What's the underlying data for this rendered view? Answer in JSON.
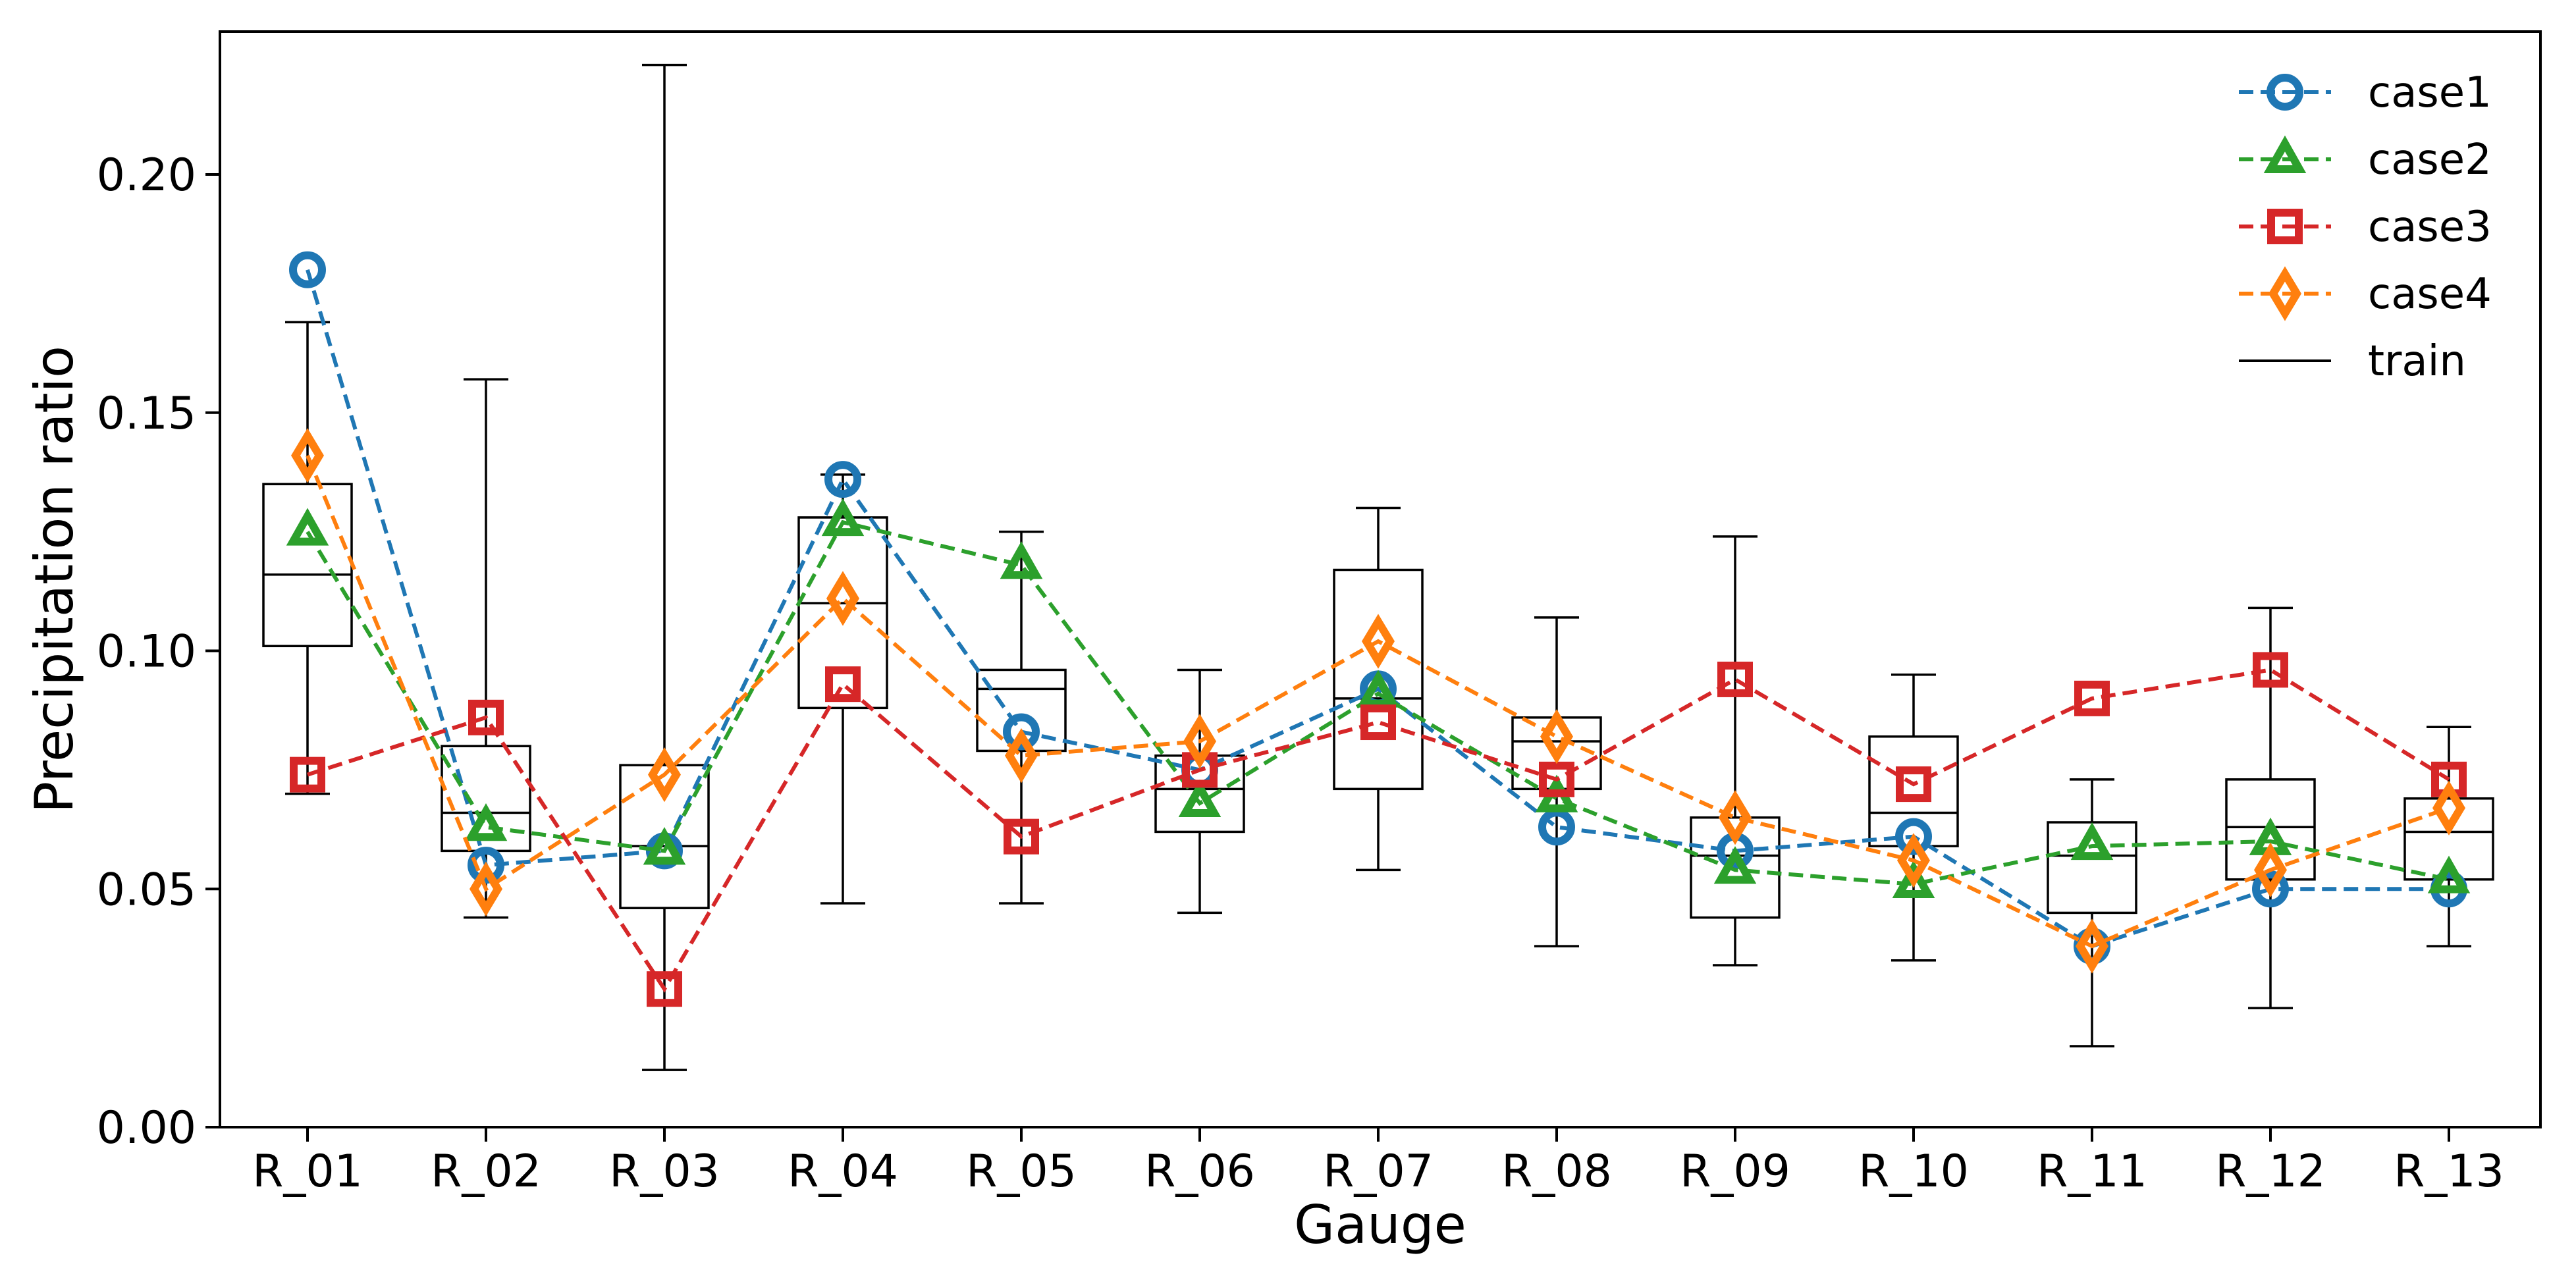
{
  "chart_data": {
    "type": "box+line",
    "title": "",
    "xlabel": "Gauge",
    "ylabel": "Precipitation ratio",
    "ylim": [
      0.0,
      0.23
    ],
    "yticks": [
      0.0,
      0.05,
      0.1,
      0.15,
      0.2
    ],
    "ytick_labels": [
      "0.00",
      "0.05",
      "0.10",
      "0.15",
      "0.20"
    ],
    "grid": false,
    "legend_position": "top-right",
    "categories": [
      "R_01",
      "R_02",
      "R_03",
      "R_04",
      "R_05",
      "R_06",
      "R_07",
      "R_08",
      "R_09",
      "R_10",
      "R_11",
      "R_12",
      "R_13"
    ],
    "series": [
      {
        "name": "case1",
        "color": "#1f77b4",
        "marker": "circle",
        "values": [
          0.18,
          0.055,
          0.058,
          0.136,
          0.083,
          0.075,
          0.092,
          0.063,
          0.058,
          0.061,
          0.038,
          0.05,
          0.05
        ]
      },
      {
        "name": "case2",
        "color": "#2ca02c",
        "marker": "triangle",
        "values": [
          0.125,
          0.063,
          0.058,
          0.127,
          0.118,
          0.068,
          0.091,
          0.069,
          0.054,
          0.051,
          0.059,
          0.06,
          0.052
        ]
      },
      {
        "name": "case3",
        "color": "#d62728",
        "marker": "square",
        "values": [
          0.074,
          0.086,
          0.029,
          0.093,
          0.061,
          0.075,
          0.085,
          0.073,
          0.094,
          0.072,
          0.09,
          0.096,
          0.073
        ]
      },
      {
        "name": "case4",
        "color": "#ff7f0e",
        "marker": "diamond",
        "values": [
          0.141,
          0.05,
          0.074,
          0.111,
          0.078,
          0.081,
          0.102,
          0.082,
          0.065,
          0.056,
          0.038,
          0.054,
          0.067
        ]
      }
    ],
    "train": {
      "name": "train",
      "color": "#000000",
      "boxes": [
        {
          "whisker_low": 0.07,
          "q1": 0.101,
          "median": 0.116,
          "q3": 0.135,
          "whisker_high": 0.169
        },
        {
          "whisker_low": 0.044,
          "q1": 0.058,
          "median": 0.066,
          "q3": 0.08,
          "whisker_high": 0.157
        },
        {
          "whisker_low": 0.012,
          "q1": 0.046,
          "median": 0.059,
          "q3": 0.076,
          "whisker_high": 0.223
        },
        {
          "whisker_low": 0.047,
          "q1": 0.088,
          "median": 0.11,
          "q3": 0.128,
          "whisker_high": 0.137
        },
        {
          "whisker_low": 0.047,
          "q1": 0.079,
          "median": 0.092,
          "q3": 0.096,
          "whisker_high": 0.125
        },
        {
          "whisker_low": 0.045,
          "q1": 0.062,
          "median": 0.071,
          "q3": 0.078,
          "whisker_high": 0.096
        },
        {
          "whisker_low": 0.054,
          "q1": 0.071,
          "median": 0.09,
          "q3": 0.117,
          "whisker_high": 0.13
        },
        {
          "whisker_low": 0.038,
          "q1": 0.071,
          "median": 0.081,
          "q3": 0.086,
          "whisker_high": 0.107
        },
        {
          "whisker_low": 0.034,
          "q1": 0.044,
          "median": 0.057,
          "q3": 0.065,
          "whisker_high": 0.124
        },
        {
          "whisker_low": 0.035,
          "q1": 0.059,
          "median": 0.066,
          "q3": 0.082,
          "whisker_high": 0.095
        },
        {
          "whisker_low": 0.017,
          "q1": 0.045,
          "median": 0.057,
          "q3": 0.064,
          "whisker_high": 0.073
        },
        {
          "whisker_low": 0.025,
          "q1": 0.052,
          "median": 0.063,
          "q3": 0.073,
          "whisker_high": 0.109
        },
        {
          "whisker_low": 0.038,
          "q1": 0.052,
          "median": 0.062,
          "q3": 0.069,
          "whisker_high": 0.084
        }
      ]
    }
  }
}
